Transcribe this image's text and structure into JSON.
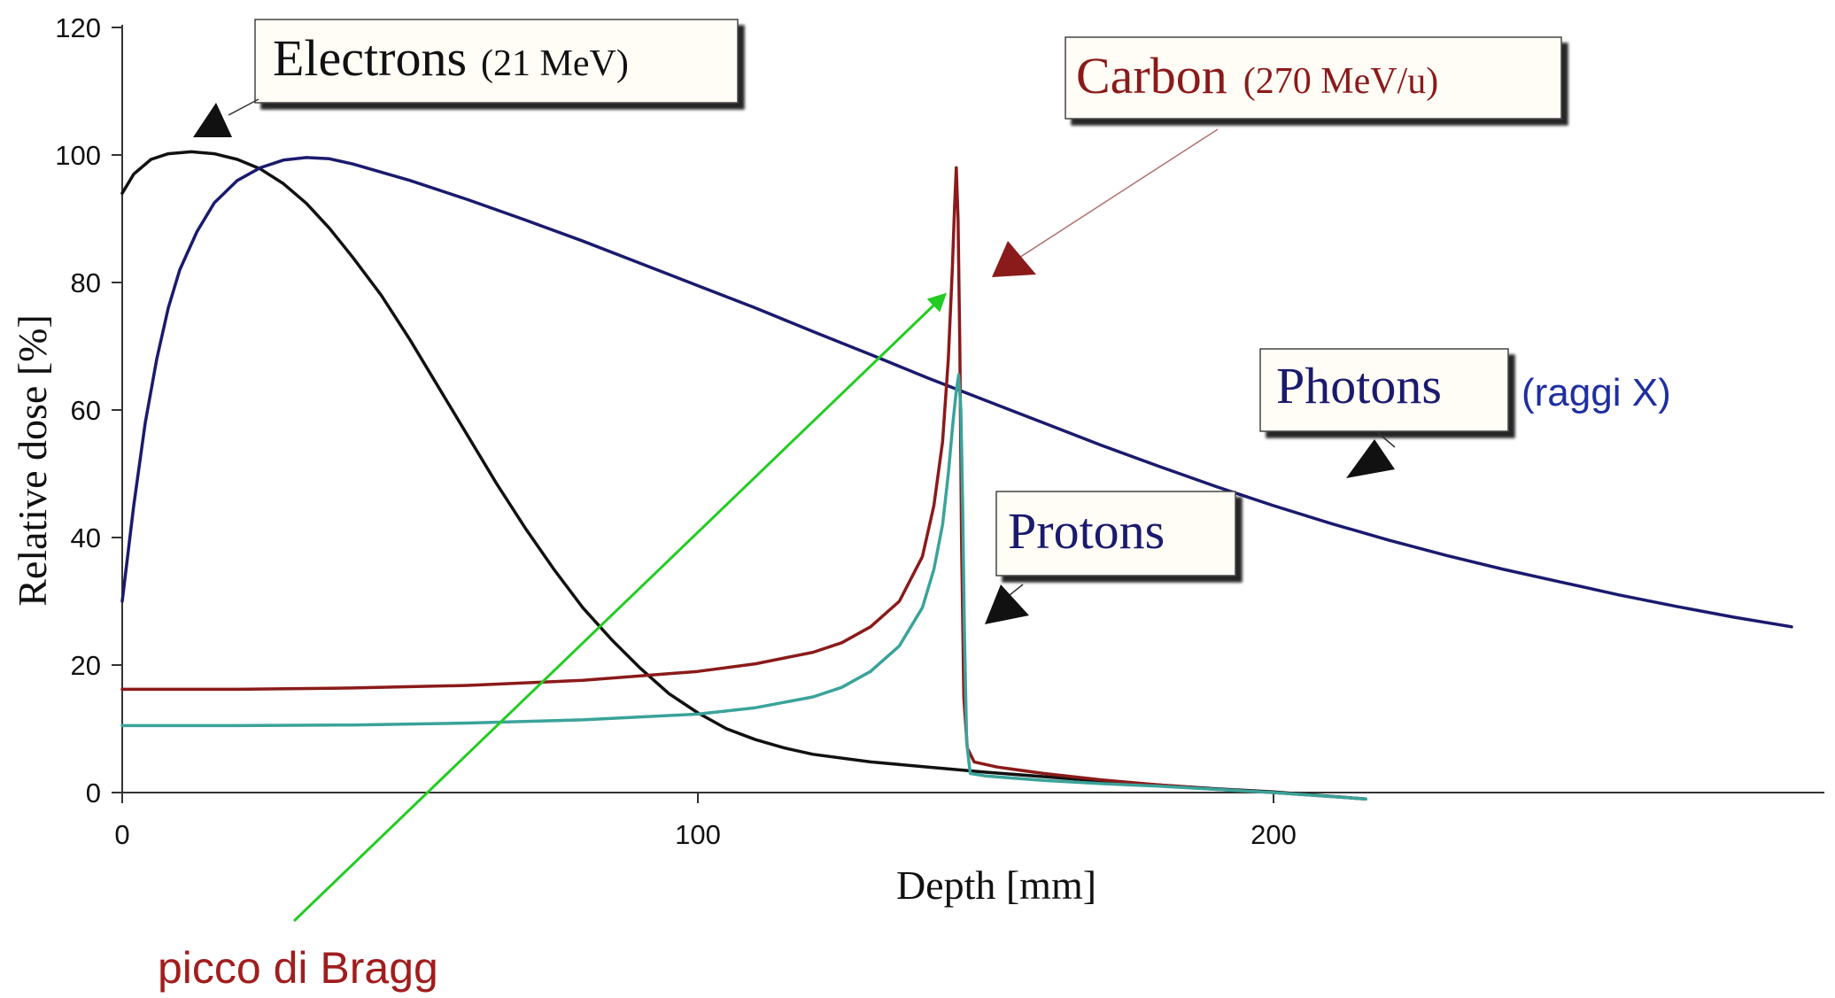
{
  "chart_data": {
    "type": "line",
    "xlabel": "Depth [mm]",
    "ylabel": "Relative dose [%]",
    "xlim": [
      0,
      290
    ],
    "ylim": [
      0,
      120
    ],
    "xticks": [
      0,
      100,
      200
    ],
    "yticks": [
      0,
      20,
      40,
      60,
      80,
      100,
      120
    ],
    "grid": false,
    "series": [
      {
        "name": "Electrons (21 MeV)",
        "color": "#111111",
        "points": [
          [
            0,
            94
          ],
          [
            2,
            97
          ],
          [
            5,
            99.3
          ],
          [
            8,
            100.2
          ],
          [
            12,
            100.5
          ],
          [
            16,
            100.2
          ],
          [
            20,
            99.3
          ],
          [
            24,
            97.8
          ],
          [
            28,
            95.5
          ],
          [
            32,
            92.4
          ],
          [
            36,
            88.5
          ],
          [
            40,
            84
          ],
          [
            45,
            78
          ],
          [
            50,
            71
          ],
          [
            55,
            63.5
          ],
          [
            60,
            56
          ],
          [
            65,
            48.5
          ],
          [
            70,
            41.5
          ],
          [
            75,
            35
          ],
          [
            80,
            29
          ],
          [
            85,
            24
          ],
          [
            90,
            19.5
          ],
          [
            95,
            15.5
          ],
          [
            100,
            12.5
          ],
          [
            105,
            10
          ],
          [
            110,
            8.3
          ],
          [
            115,
            7
          ],
          [
            120,
            6
          ],
          [
            130,
            4.8
          ],
          [
            140,
            4
          ],
          [
            150,
            3.2
          ],
          [
            160,
            2.5
          ],
          [
            170,
            1.8
          ],
          [
            180,
            1.2
          ],
          [
            190,
            0.6
          ],
          [
            200,
            0.1
          ],
          [
            216,
            -1
          ]
        ]
      },
      {
        "name": "Photons",
        "color": "#1a1a6e",
        "points": [
          [
            0,
            30
          ],
          [
            2,
            45
          ],
          [
            4,
            58
          ],
          [
            6,
            68
          ],
          [
            8,
            76
          ],
          [
            10,
            82
          ],
          [
            13,
            88
          ],
          [
            16,
            92.5
          ],
          [
            20,
            96
          ],
          [
            24,
            98
          ],
          [
            28,
            99.2
          ],
          [
            32,
            99.6
          ],
          [
            36,
            99.4
          ],
          [
            40,
            98.6
          ],
          [
            50,
            96
          ],
          [
            60,
            93
          ],
          [
            70,
            89.8
          ],
          [
            80,
            86.5
          ],
          [
            90,
            83
          ],
          [
            100,
            79.5
          ],
          [
            110,
            76
          ],
          [
            120,
            72.3
          ],
          [
            130,
            68.7
          ],
          [
            140,
            65
          ],
          [
            150,
            61.5
          ],
          [
            160,
            58
          ],
          [
            170,
            54.5
          ],
          [
            180,
            51.2
          ],
          [
            190,
            48
          ],
          [
            200,
            45
          ],
          [
            210,
            42.2
          ],
          [
            220,
            39.6
          ],
          [
            230,
            37.2
          ],
          [
            240,
            35
          ],
          [
            250,
            33
          ],
          [
            260,
            31
          ],
          [
            270,
            29.2
          ],
          [
            280,
            27.5
          ],
          [
            290,
            26
          ]
        ]
      },
      {
        "name": "Carbon (270 MeV/u)",
        "color": "#8b1a1a",
        "points": [
          [
            0,
            16.2
          ],
          [
            20,
            16.2
          ],
          [
            40,
            16.4
          ],
          [
            60,
            16.8
          ],
          [
            80,
            17.6
          ],
          [
            100,
            19
          ],
          [
            110,
            20.2
          ],
          [
            120,
            22
          ],
          [
            125,
            23.5
          ],
          [
            130,
            26
          ],
          [
            135,
            30
          ],
          [
            139,
            37
          ],
          [
            141,
            45
          ],
          [
            142.5,
            55
          ],
          [
            143.5,
            68
          ],
          [
            144.2,
            82
          ],
          [
            144.6,
            92
          ],
          [
            144.9,
            98
          ],
          [
            145.2,
            90
          ],
          [
            145.5,
            70
          ],
          [
            145.8,
            40
          ],
          [
            146.2,
            15
          ],
          [
            146.8,
            7
          ],
          [
            148,
            4.8
          ],
          [
            152,
            4
          ],
          [
            160,
            3
          ],
          [
            170,
            2
          ],
          [
            180,
            1.2
          ],
          [
            190,
            0.5
          ],
          [
            200,
            0
          ],
          [
            216,
            -1
          ]
        ]
      },
      {
        "name": "Protons",
        "color": "#3aa39a",
        "points": [
          [
            0,
            10.5
          ],
          [
            20,
            10.5
          ],
          [
            40,
            10.6
          ],
          [
            60,
            10.9
          ],
          [
            80,
            11.4
          ],
          [
            100,
            12.3
          ],
          [
            110,
            13.3
          ],
          [
            120,
            15
          ],
          [
            125,
            16.5
          ],
          [
            130,
            19
          ],
          [
            135,
            23
          ],
          [
            139,
            29
          ],
          [
            141,
            35
          ],
          [
            142.5,
            42
          ],
          [
            143.5,
            50
          ],
          [
            144.3,
            58
          ],
          [
            144.9,
            63
          ],
          [
            145.3,
            65.5
          ],
          [
            145.7,
            60
          ],
          [
            146,
            45
          ],
          [
            146.3,
            25
          ],
          [
            146.7,
            8
          ],
          [
            147.3,
            3
          ],
          [
            150,
            2.6
          ],
          [
            160,
            1.9
          ],
          [
            170,
            1.4
          ],
          [
            180,
            1
          ],
          [
            190,
            0.5
          ],
          [
            200,
            0
          ],
          [
            216,
            -1
          ]
        ]
      }
    ],
    "labels": {
      "electrons_main": "Electrons",
      "electrons_energy": "(21 MeV)",
      "carbon_main": "Carbon",
      "carbon_energy": "(270 MeV/u)",
      "photons": "Photons",
      "photons_note": "(raggi X)",
      "protons": "Protons"
    },
    "annotation": {
      "text": "picco di Bragg",
      "color": "#a11d1d",
      "arrow_color": "#22cc22",
      "points_to": [
        145,
        80
      ]
    }
  }
}
